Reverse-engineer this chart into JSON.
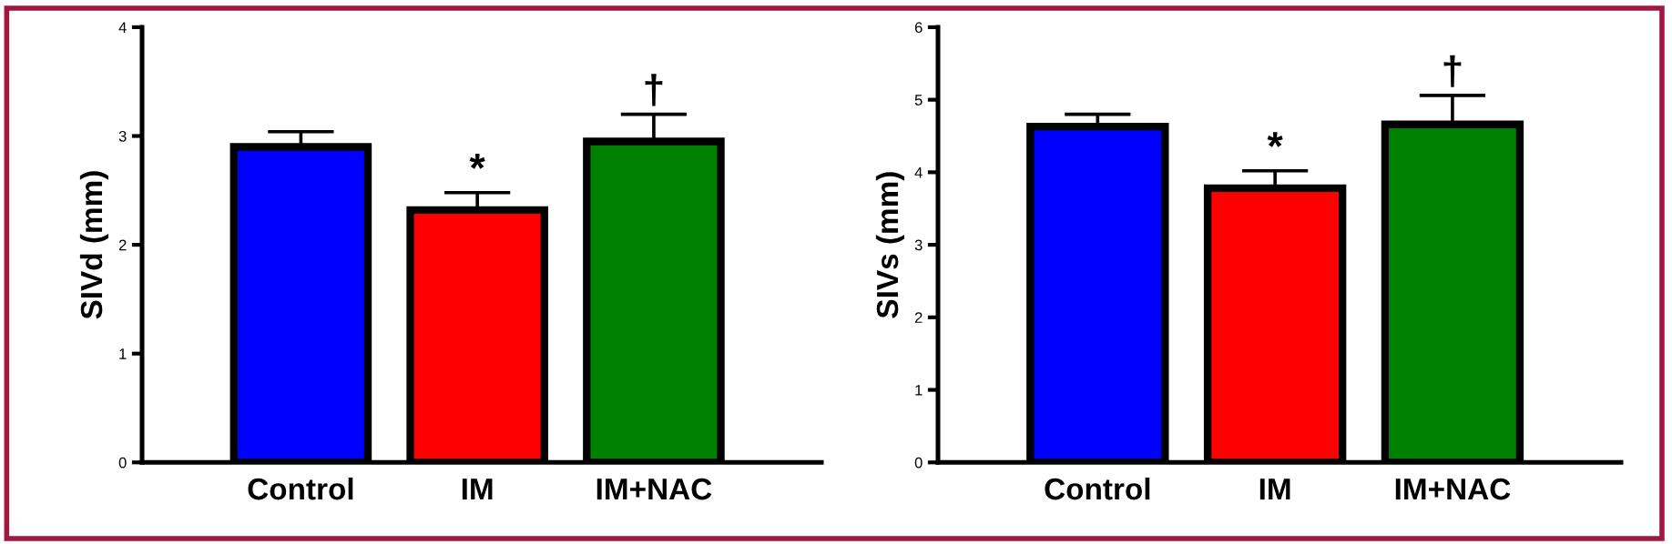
{
  "chart_data": [
    {
      "type": "bar",
      "ylabel": "SIVd (mm)",
      "categories": [
        "Control",
        "IM",
        "IM+NAC"
      ],
      "values": [
        2.9,
        2.32,
        2.95
      ],
      "colors": [
        "#0000ff",
        "#ff0000",
        "#008000"
      ],
      "errors": [
        0.14,
        0.16,
        0.25
      ],
      "ylim": [
        0,
        4
      ],
      "yticks": [
        0,
        1,
        2,
        3,
        4
      ],
      "grid": false,
      "legend": false,
      "annotations": [
        "*",
        "†"
      ]
    },
    {
      "type": "bar",
      "ylabel": "SIVs (mm)",
      "categories": [
        "Control",
        "IM",
        "IM+NAC"
      ],
      "values": [
        4.63,
        3.78,
        4.66
      ],
      "colors": [
        "#0000ff",
        "#ff0000",
        "#008000"
      ],
      "errors": [
        0.17,
        0.24,
        0.4
      ],
      "ylim": [
        0,
        6
      ],
      "yticks": [
        0,
        1,
        2,
        3,
        4,
        5,
        6
      ],
      "grid": false,
      "legend": false,
      "annotations": [
        "*",
        "†"
      ]
    }
  ]
}
